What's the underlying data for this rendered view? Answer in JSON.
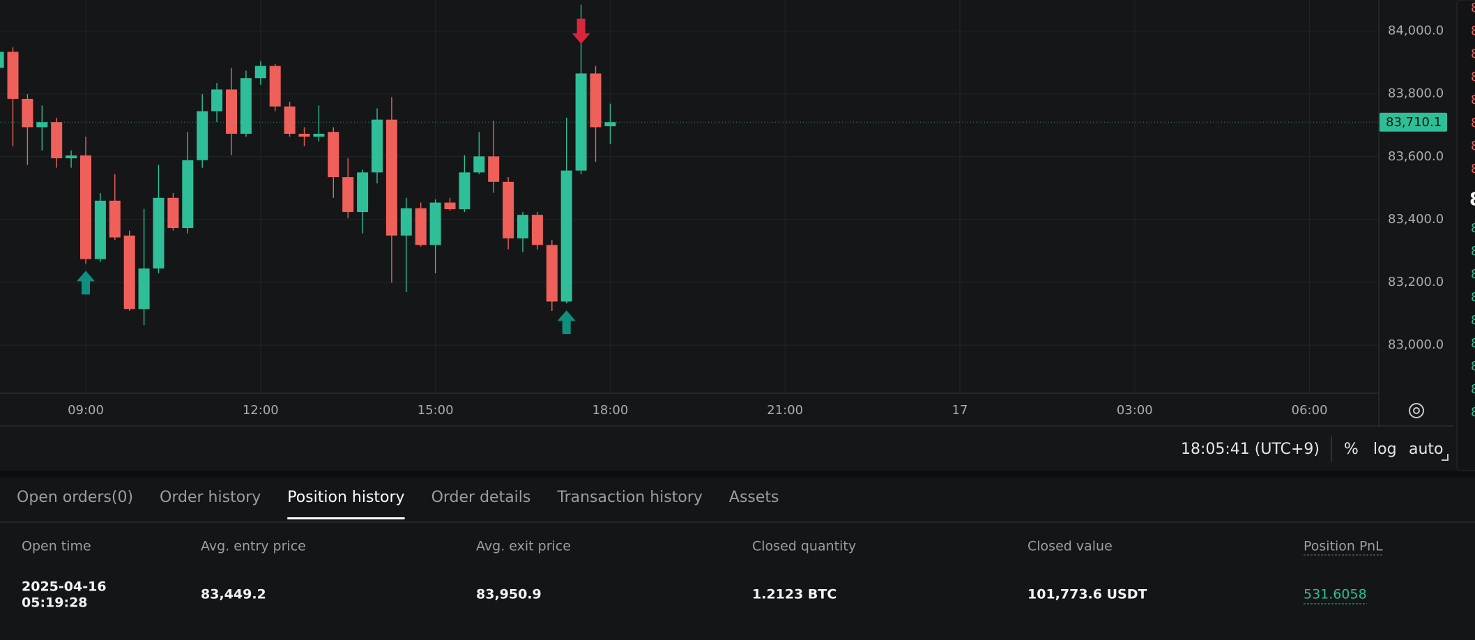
{
  "chart_data": {
    "type": "candlestick",
    "x": [
      "07:30",
      "07:45",
      "08:00",
      "08:15",
      "08:30",
      "08:45",
      "09:00",
      "09:15",
      "09:30",
      "09:45",
      "10:00",
      "10:15",
      "10:30",
      "10:45",
      "11:00",
      "11:15",
      "11:30",
      "11:45",
      "12:00",
      "12:15",
      "12:30",
      "12:45",
      "13:00",
      "13:15",
      "13:30",
      "13:45",
      "14:00",
      "14:15",
      "14:30",
      "14:45",
      "15:00",
      "15:15",
      "15:30",
      "15:45",
      "16:00",
      "16:15",
      "16:30",
      "16:45",
      "17:00",
      "17:15",
      "17:30",
      "17:45",
      "18:00"
    ],
    "open": [
      83883,
      83934,
      83784,
      83694,
      83710,
      83595,
      83604,
      83274,
      83460,
      83349,
      83115,
      83244,
      83469,
      83373,
      83589,
      83745,
      83814,
      83673,
      83850,
      83889,
      83760,
      83673,
      83664,
      83679,
      83535,
      83424,
      83550,
      83718,
      83349,
      83436,
      83319,
      83454,
      83433,
      83550,
      83601,
      83520,
      83340,
      83415,
      83319,
      83139,
      83556,
      83865,
      83697
    ],
    "high": [
      83949,
      83949,
      83799,
      83763,
      83724,
      83620,
      83664,
      83484,
      83544,
      83365,
      83434,
      83574,
      83484,
      83679,
      83799,
      83835,
      83883,
      83874,
      83904,
      83895,
      83775,
      83694,
      83763,
      83694,
      83595,
      83559,
      83754,
      83790,
      83469,
      83454,
      83464,
      83469,
      83605,
      83679,
      83715,
      83535,
      83424,
      83424,
      83335,
      83724,
      84084,
      83889,
      83769
    ],
    "low": [
      83874,
      83634,
      83574,
      83620,
      83565,
      83565,
      83259,
      83265,
      83335,
      83109,
      83064,
      83229,
      83365,
      83356,
      83565,
      83710,
      83605,
      83664,
      83829,
      83745,
      83664,
      83634,
      83649,
      83469,
      83404,
      83356,
      83515,
      83199,
      83169,
      83314,
      83229,
      83428,
      83424,
      83544,
      83485,
      83305,
      83296,
      83305,
      83109,
      83133,
      83544,
      83584,
      83640
    ],
    "close": [
      83934,
      83784,
      83694,
      83710,
      83595,
      83604,
      83274,
      83460,
      83343,
      83115,
      83244,
      83469,
      83373,
      83589,
      83745,
      83814,
      83673,
      83850,
      83889,
      83760,
      83673,
      83664,
      83673,
      83535,
      83424,
      83550,
      83718,
      83349,
      83436,
      83319,
      83454,
      83433,
      83550,
      83601,
      83520,
      83340,
      83415,
      83319,
      83139,
      83556,
      83865,
      83694,
      83710.1
    ],
    "up_color": "#2ebf98",
    "down_color": "#f0605a",
    "last_price_label": "83,710.1",
    "markers": [
      {
        "x": "09:00",
        "shape": "arrow-up",
        "color": "#0f8f7e"
      },
      {
        "x": "17:15",
        "shape": "arrow-up",
        "color": "#0f8f7e"
      },
      {
        "x": "17:30",
        "shape": "arrow-down",
        "color": "#d9263c"
      }
    ],
    "ylim": [
      82847,
      84099
    ],
    "yticks": [
      {
        "value": 83000,
        "label": "83,000.0"
      },
      {
        "value": 83200,
        "label": "83,200.0"
      },
      {
        "value": 83400,
        "label": "83,400.0"
      },
      {
        "value": 83600,
        "label": "83,600.0"
      },
      {
        "value": 83800,
        "label": "83,800.0"
      },
      {
        "value": 84000,
        "label": "84,000.0"
      }
    ],
    "xticks": [
      "09:00",
      "12:00",
      "15:00",
      "18:00",
      "21:00",
      "17",
      "03:00",
      "06:00"
    ],
    "grid": true
  },
  "order_book": {
    "asks": [
      "8",
      "8",
      "8",
      "8",
      "8",
      "8",
      "8",
      "8"
    ],
    "mid": "8",
    "bids": [
      "8",
      "8",
      "8",
      "8",
      "8",
      "8",
      "8",
      "8",
      "8"
    ]
  },
  "toolbar": {
    "clock": "18:05:41 (UTC+9)",
    "buttons": [
      "%",
      "log",
      "auto"
    ]
  },
  "tabs": {
    "items": [
      "Open orders(0)",
      "Order history",
      "Position history",
      "Order details",
      "Transaction history",
      "Assets"
    ],
    "active": 2
  },
  "table": {
    "columns": [
      "Open time",
      "Avg. entry price",
      "Avg. exit price",
      "Closed quantity",
      "Closed value",
      "Position PnL"
    ],
    "rows": [
      [
        [
          "2025-04-16",
          "05:19:28"
        ],
        "83,449.2",
        "83,950.9",
        "1.2123 BTC",
        "101,773.6 USDT",
        "531.6058"
      ]
    ]
  }
}
